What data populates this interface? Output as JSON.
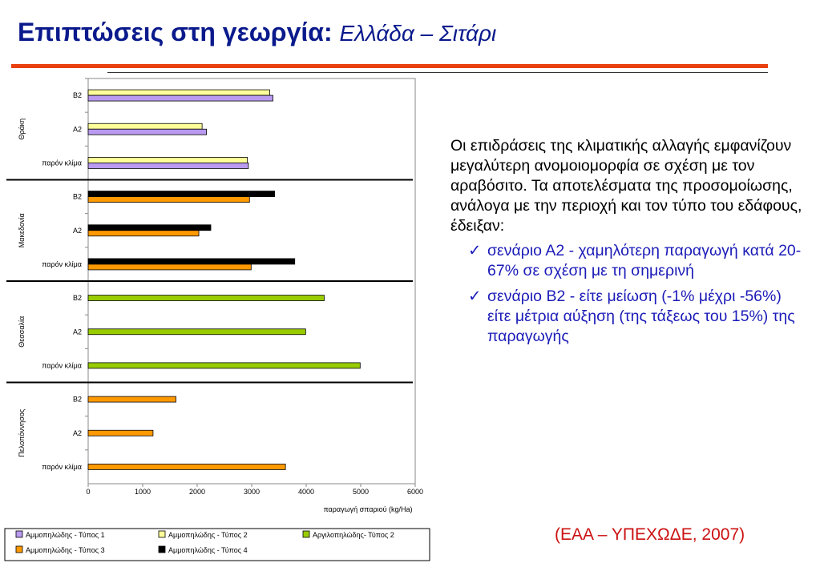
{
  "slide": {
    "title": "Επιπτώσεις στη γεωργία:",
    "subtitle": "Ελλάδα – Σιτάρι",
    "paragraph": "Οι επιδράσεις της κλιματικής αλλαγής εμφανίζουν μεγαλύτερη ανομοιομορφία σε σχέση με τον αραβόσιτο. Τα αποτελέσματα της προσομοίωσης, ανάλογα με την περιοχή και τον τύπο του εδάφους, έδειξαν:",
    "bullets": [
      "σενάριο Α2 - χαμηλότερη παραγωγή κατά 20-67% σε σχέση με τη σημερινή",
      "σενάριο Β2 - είτε μείωση (-1% μέχρι -56%) είτε μέτρια αύξηση (της τάξεως του 15%) της παραγωγής"
    ],
    "check_glyph": "✓",
    "source": "(ΕΑΑ – ΥΠΕΧΩΔΕ, 2007)"
  },
  "chart_data": {
    "type": "bar",
    "orientation": "horizontal",
    "xlabel": "παραγωγή σπαριού (kg/Ha)",
    "xlim": [
      0,
      6000
    ],
    "xticks": [
      0,
      1000,
      2000,
      3000,
      4000,
      5000,
      6000
    ],
    "grid": false,
    "legend_position": "bottom",
    "series": [
      {
        "name": "Αμμοπηλώδης - Τύπος 1",
        "color": "#b99af0"
      },
      {
        "name": "Αμμοπηλώδης - Τύπος 2",
        "color": "#ffff99"
      },
      {
        "name": "Αργιλοπηλώδης- Τύπος 2",
        "color": "#99cc00"
      },
      {
        "name": "Αμμοπηλώδης - Τύπος 3",
        "color": "#ff9900"
      },
      {
        "name": "Αμμοπηλώδης - Τύπος 4",
        "color": "#000000"
      }
    ],
    "groups": [
      {
        "region": "Θράκη",
        "scenarios": [
          {
            "label": "Β2",
            "bars": [
              {
                "series": 1,
                "value": 3330
              },
              {
                "series": 0,
                "value": 3390
              }
            ]
          },
          {
            "label": "Α2",
            "bars": [
              {
                "series": 1,
                "value": 2090
              },
              {
                "series": 0,
                "value": 2170
              }
            ]
          },
          {
            "label": "παρόν κλίμα",
            "bars": [
              {
                "series": 1,
                "value": 2920
              },
              {
                "series": 0,
                "value": 2940
              }
            ]
          }
        ]
      },
      {
        "region": "Μακεδονία",
        "scenarios": [
          {
            "label": "Β2",
            "bars": [
              {
                "series": 4,
                "value": 3420
              },
              {
                "series": 3,
                "value": 2960
              }
            ]
          },
          {
            "label": "Α2",
            "bars": [
              {
                "series": 4,
                "value": 2250
              },
              {
                "series": 3,
                "value": 2030
              }
            ]
          },
          {
            "label": "παρόν κλίμα",
            "bars": [
              {
                "series": 4,
                "value": 3790
              },
              {
                "series": 3,
                "value": 2990
              }
            ]
          }
        ]
      },
      {
        "region": "Θεσσαλία",
        "scenarios": [
          {
            "label": "Β2",
            "bars": [
              {
                "series": 2,
                "value": 4330
              }
            ]
          },
          {
            "label": "Α2",
            "bars": [
              {
                "series": 2,
                "value": 3990
              }
            ]
          },
          {
            "label": "παρόν κλίμα",
            "bars": [
              {
                "series": 2,
                "value": 4990
              }
            ]
          }
        ]
      },
      {
        "region": "Πελοπόννησος",
        "scenarios": [
          {
            "label": "Β2",
            "bars": [
              {
                "series": 3,
                "value": 1610
              }
            ]
          },
          {
            "label": "Α2",
            "bars": [
              {
                "series": 3,
                "value": 1190
              }
            ]
          },
          {
            "label": "παρόν κλίμα",
            "bars": [
              {
                "series": 3,
                "value": 3620
              }
            ]
          }
        ]
      }
    ]
  }
}
